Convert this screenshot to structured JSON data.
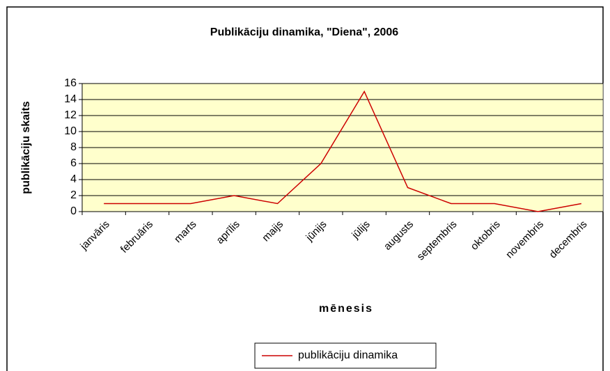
{
  "chart_data": {
    "type": "line",
    "title": "Publikāciju dinamika, \"Diena\", 2006",
    "x_label": "mēnesis",
    "y_label": "publikāciju skaits",
    "categories": [
      "janvāris",
      "februāris",
      "marts",
      "aprīlis",
      "maijs",
      "jūnijs",
      "jūlijs",
      "augusts",
      "septembris",
      "oktobris",
      "novembris",
      "decembris"
    ],
    "series": [
      {
        "name": "publikāciju dinamika",
        "color": "#cc0000",
        "values": [
          1,
          1,
          1,
          2,
          1,
          6,
          15,
          3,
          1,
          1,
          0,
          1
        ]
      }
    ],
    "ylim": [
      0,
      16
    ],
    "yticks": [
      0,
      2,
      4,
      6,
      8,
      10,
      12,
      14,
      16
    ],
    "grid": true,
    "legend": "bottom"
  }
}
